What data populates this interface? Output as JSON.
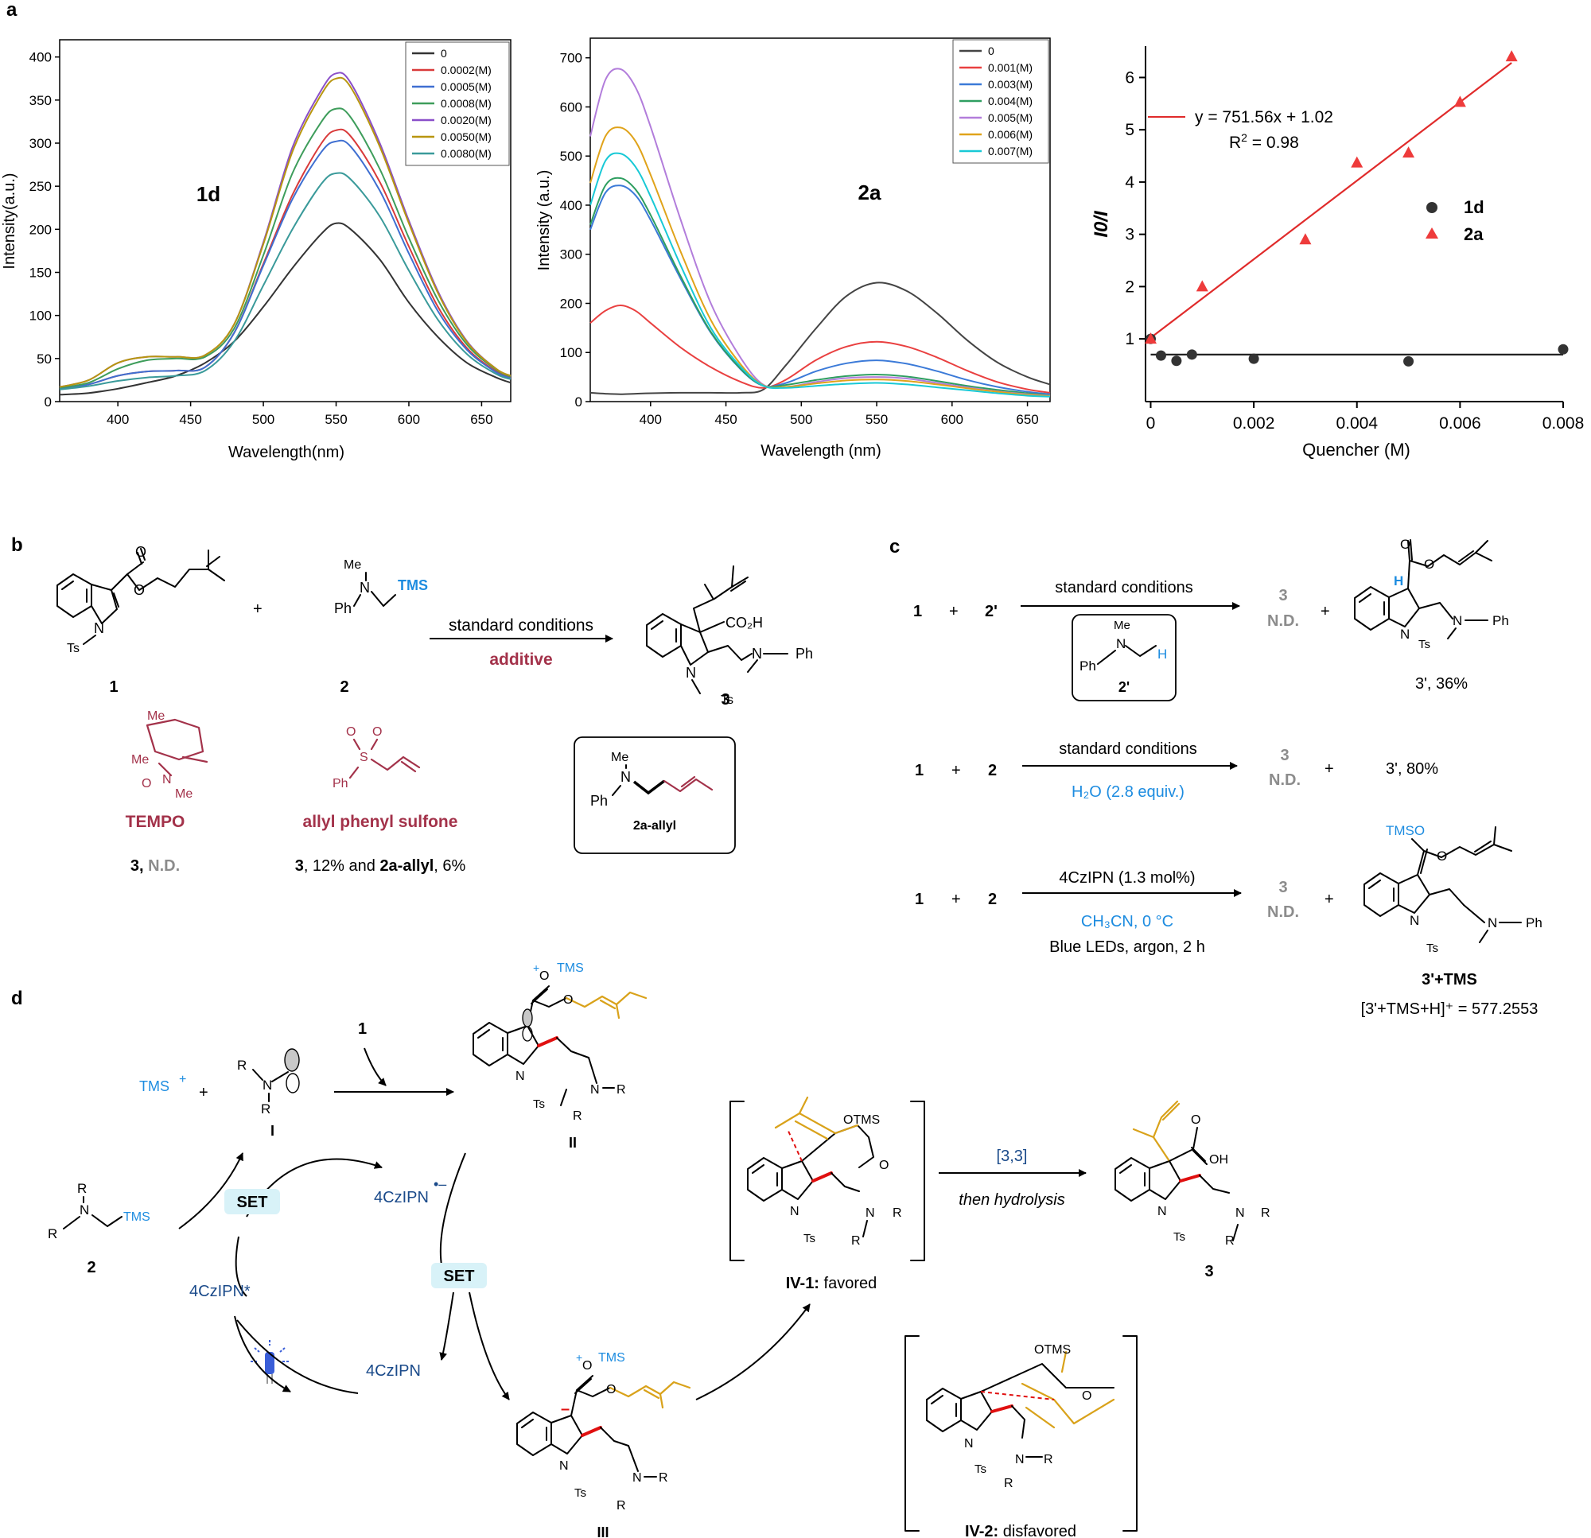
{
  "panel_labels": {
    "a": "a",
    "b": "b",
    "c": "c",
    "d": "d"
  },
  "chart_data": [
    {
      "type": "line",
      "panel_label": "1d",
      "xlabel": "Wavelength(nm)",
      "ylabel": "Intensity(a.u.)",
      "xlim": [
        360,
        670
      ],
      "ylim": [
        0,
        420
      ],
      "xticks": [
        400,
        450,
        500,
        550,
        600,
        650
      ],
      "yticks": [
        0,
        50,
        100,
        150,
        200,
        250,
        300,
        350,
        400
      ],
      "legend": "top-right",
      "x": [
        360,
        380,
        400,
        420,
        440,
        460,
        480,
        500,
        520,
        540,
        550,
        560,
        580,
        600,
        620,
        640,
        660,
        670
      ],
      "series": [
        {
          "name": "0",
          "color": "#333333",
          "values": [
            8,
            10,
            15,
            22,
            30,
            45,
            70,
            110,
            155,
            195,
            207,
            200,
            165,
            115,
            75,
            45,
            28,
            22
          ]
        },
        {
          "name": "0.0002(M)",
          "color": "#d93a3a",
          "values": [
            15,
            20,
            30,
            35,
            36,
            40,
            80,
            160,
            240,
            300,
            315,
            308,
            255,
            180,
            110,
            62,
            35,
            28
          ]
        },
        {
          "name": "0.0005(M)",
          "color": "#3f6fd1",
          "values": [
            15,
            20,
            30,
            35,
            36,
            40,
            80,
            158,
            235,
            290,
            302,
            296,
            245,
            172,
            105,
            60,
            34,
            27
          ]
        },
        {
          "name": "0.0008(M)",
          "color": "#3e9d5b",
          "values": [
            16,
            22,
            38,
            48,
            50,
            52,
            85,
            170,
            265,
            325,
            340,
            330,
            270,
            190,
            118,
            66,
            37,
            29
          ]
        },
        {
          "name": "0.0020(M)",
          "color": "#8a4fc9",
          "values": [
            17,
            25,
            45,
            52,
            52,
            54,
            90,
            185,
            295,
            362,
            381,
            370,
            300,
            210,
            128,
            70,
            38,
            30
          ]
        },
        {
          "name": "0.0050(M)",
          "color": "#b8960f",
          "values": [
            17,
            25,
            45,
            52,
            52,
            54,
            90,
            183,
            290,
            357,
            375,
            365,
            296,
            207,
            126,
            69,
            38,
            30
          ]
        },
        {
          "name": "0.0080(M)",
          "color": "#3a9a9a",
          "values": [
            14,
            18,
            24,
            28,
            30,
            36,
            70,
            135,
            200,
            253,
            265,
            258,
            215,
            152,
            95,
            55,
            32,
            26
          ]
        }
      ]
    },
    {
      "type": "line",
      "panel_label": "2a",
      "xlabel": "Wavelength (nm)",
      "ylabel": "Intensity (a.u.)",
      "xlim": [
        360,
        665
      ],
      "ylim": [
        0,
        740
      ],
      "xticks": [
        400,
        450,
        500,
        550,
        600,
        650
      ],
      "yticks": [
        0,
        100,
        200,
        300,
        400,
        500,
        600,
        700
      ],
      "legend": "top-right",
      "x": [
        360,
        370,
        380,
        390,
        400,
        420,
        440,
        460,
        475,
        490,
        510,
        530,
        550,
        570,
        590,
        610,
        630,
        650,
        665
      ],
      "series": [
        {
          "name": "0",
          "color": "#444444",
          "values": [
            18,
            16,
            15,
            16,
            17,
            18,
            18,
            18,
            25,
            75,
            150,
            215,
            242,
            225,
            180,
            125,
            80,
            50,
            35
          ]
        },
        {
          "name": "0.001(M)",
          "color": "#e94040",
          "values": [
            160,
            185,
            196,
            185,
            160,
            110,
            70,
            40,
            28,
            45,
            85,
            112,
            122,
            112,
            90,
            63,
            40,
            25,
            18
          ]
        },
        {
          "name": "0.003(M)",
          "color": "#3b7ad8",
          "values": [
            350,
            425,
            440,
            420,
            370,
            250,
            140,
            65,
            32,
            38,
            62,
            78,
            84,
            77,
            62,
            44,
            30,
            20,
            15
          ]
        },
        {
          "name": "0.004(M)",
          "color": "#2e9e60",
          "values": [
            360,
            440,
            455,
            432,
            380,
            255,
            142,
            66,
            32,
            34,
            44,
            52,
            55,
            51,
            42,
            32,
            24,
            17,
            13
          ]
        },
        {
          "name": "0.005(M)",
          "color": "#b27ddb",
          "values": [
            540,
            655,
            677,
            640,
            560,
            370,
            200,
            88,
            34,
            30,
            40,
            48,
            50,
            47,
            38,
            29,
            21,
            15,
            12
          ]
        },
        {
          "name": "0.006(M)",
          "color": "#e0a31a",
          "values": [
            445,
            540,
            558,
            530,
            462,
            305,
            166,
            75,
            33,
            30,
            37,
            43,
            45,
            42,
            35,
            27,
            20,
            14,
            11
          ]
        },
        {
          "name": "0.007(M)",
          "color": "#18c9d6",
          "values": [
            400,
            490,
            505,
            478,
            418,
            277,
            150,
            70,
            32,
            28,
            32,
            36,
            38,
            35,
            29,
            23,
            17,
            12,
            10
          ]
        }
      ]
    },
    {
      "type": "scatter",
      "xlabel": "Quencher (M)",
      "ylabel": "I0/I",
      "xlim": [
        -0.0001,
        0.008
      ],
      "ylim": [
        -0.2,
        6.6
      ],
      "xticks": [
        0,
        0.002,
        0.004,
        0.006,
        0.008
      ],
      "xtick_labels": [
        "0",
        "0.002",
        "0.004",
        "0.006",
        "0.008"
      ],
      "yticks": [
        1,
        2,
        3,
        4,
        5,
        6
      ],
      "legend": "right",
      "fit_equation": "y = 751.56x + 1.02",
      "r_squared_label": "R",
      "r_squared_sup": "2",
      "r_squared_value": " = 0.98",
      "fit": {
        "slope": 751.56,
        "intercept": 1.02,
        "x_range": [
          0,
          0.007
        ],
        "color": "#e02b2b"
      },
      "series": [
        {
          "name": "1d",
          "color": "#333333",
          "marker": "circle",
          "x": [
            0,
            0.0002,
            0.0005,
            0.0008,
            0.002,
            0.005,
            0.008
          ],
          "values": [
            1.0,
            0.68,
            0.58,
            0.7,
            0.62,
            0.57,
            0.8
          ]
        },
        {
          "name": "2a",
          "color": "#ee3b3b",
          "marker": "triangle",
          "x": [
            0,
            0.001,
            0.003,
            0.004,
            0.005,
            0.006,
            0.007
          ],
          "values": [
            1.0,
            2.0,
            2.9,
            4.37,
            4.56,
            5.53,
            6.4
          ]
        }
      ],
      "hline_1d": 0.7
    }
  ],
  "scheme_b": {
    "label_1": "1",
    "label_2": "2",
    "label_3": "3",
    "plus": "+",
    "conditions": "standard conditions",
    "additive": "additive",
    "tempo_name": "TEMPO",
    "tempo_result_3": "3,",
    "tempo_result_nd": " N.D.",
    "sulfone_name": "allyl phenyl sulfone",
    "sulfone_result_3": "3",
    "sulfone_result_mid": ", 12% and ",
    "sulfone_result_2a": "2a-allyl",
    "sulfone_result_end": ",  6%",
    "box_label": "2a-allyl",
    "atoms": {
      "Ts": "Ts",
      "Me": "Me",
      "Ph": "Ph",
      "N": "N",
      "TMS": "TMS",
      "O": "O",
      "CO2H": "CO₂H",
      "S": "S"
    }
  },
  "scheme_c": {
    "rows": [
      {
        "r1": "1",
        "plus": "+",
        "r2": "2'",
        "above": "standard conditions",
        "below": "",
        "nd_top": "3",
        "nd_bottom": "N.D.",
        "plus2": "+",
        "product": "3',  36%"
      },
      {
        "r1": "1",
        "plus": "+",
        "r2": "2",
        "above": "standard conditions",
        "below": "H₂O (2.8 equiv.)",
        "nd_top": "3",
        "nd_bottom": "N.D.",
        "plus2": "+",
        "product": "3',  80%"
      },
      {
        "r1": "1",
        "plus": "+",
        "r2": "2",
        "above": "4CzIPN (1.3 mol%)",
        "below": "CH₃CN, 0 °C",
        "below2": "Blue LEDs, argon, 2 h",
        "nd_top": "3",
        "nd_bottom": "N.D.",
        "plus2": "+",
        "product": "3'+TMS"
      }
    ],
    "box_label": "2'",
    "box_h": "H",
    "h_label": "H",
    "mass_label": "[3'+TMS+H]⁺ = 577.2553",
    "tms_o": "TMSO"
  },
  "scheme_d": {
    "tms_plus": "TMS",
    "plus": "+",
    "label_1": "1",
    "label_I": "I",
    "label_II": "II",
    "label_III": "III",
    "label_2": "2",
    "label_3": "3",
    "set": "SET",
    "cat_radical_anion": "4CzIPN",
    "cat_excited": "4CzIPN*",
    "cat_ground": "4CzIPN",
    "sigmatropic": "[3,3]",
    "hydrolysis": "then hydrolysis",
    "iv1_label": "IV-1:",
    "iv1_text": " favored",
    "iv2_label": "IV-2:",
    "iv2_text": " disfavored",
    "otms": "OTMS",
    "atoms": {
      "R1": "R",
      "R2": "R",
      "N": "N",
      "Ts": "Ts",
      "O": "O",
      "OH": "OH",
      "TMS": "TMS"
    }
  },
  "colors": {
    "tms_blue": "#1d8ce0",
    "wine": "#a3324a",
    "gold": "#d9a21a",
    "bond_red": "#e01010",
    "navy": "#1a4a8a",
    "grey": "#8c8c8c",
    "set_bg": "#d8f2f8"
  }
}
